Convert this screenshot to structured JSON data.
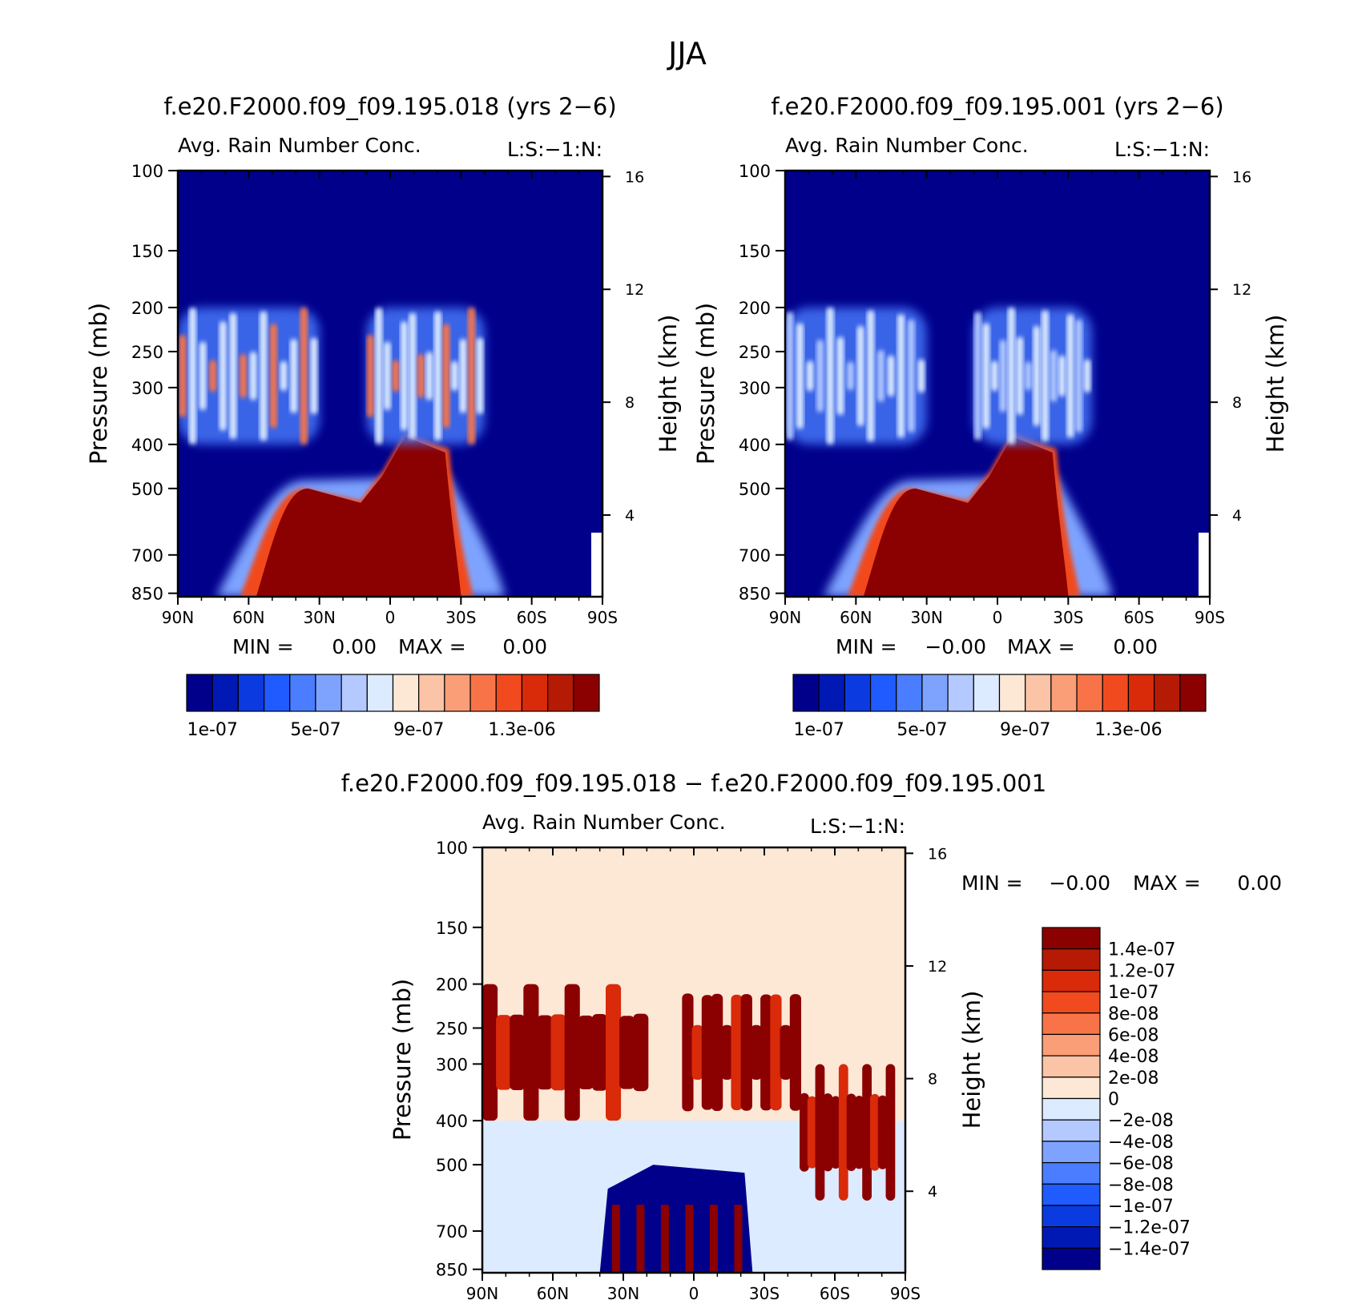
{
  "page": {
    "title": "JJA"
  },
  "panels": [
    {
      "title": "f.e20.F2000.f09_f09.195.018 (yrs 2-6)",
      "subtitle": "Avg. Rain Number Conc.",
      "right_note": "L:S:-1:N:",
      "stats": {
        "min_label": "MIN =",
        "min_value": "0.00",
        "max_label": "MAX =",
        "max_value": "0.00"
      }
    },
    {
      "title": "f.e20.F2000.f09_f09.195.001 (yrs 2-6)",
      "subtitle": "Avg. Rain Number Conc.",
      "right_note": "L:S:-1:N:",
      "stats": {
        "min_label": "MIN =",
        "min_value": "-0.00",
        "max_label": "MAX =",
        "max_value": "0.00"
      }
    },
    {
      "title": "f.e20.F2000.f09_f09.195.018 - f.e20.F2000.f09_f09.195.001",
      "subtitle": "Avg. Rain Number Conc.",
      "right_note": "L:S:-1:N:",
      "stats": {
        "min_label": "MIN =",
        "min_value": "-0.00",
        "max_label": "MAX =",
        "max_value": "0.00"
      }
    }
  ],
  "axes": {
    "ylabel": "Pressure (mb)",
    "ylabel_right": "Height (km)",
    "pressure_ticks": [
      100,
      150,
      200,
      250,
      300,
      400,
      500,
      700,
      850
    ],
    "pressure_tick_labels": [
      "100",
      "150",
      "200",
      "250",
      "300",
      "400",
      "500",
      "700",
      "850"
    ],
    "height_ticks": [
      16,
      12,
      8,
      4
    ],
    "height_tick_labels": [
      "16",
      "12",
      "8",
      "4"
    ],
    "lat_ticks": [
      90,
      60,
      30,
      0,
      -30,
      -60,
      -90
    ],
    "lat_tick_labels": [
      "90N",
      "60N",
      "30N",
      "0",
      "30S",
      "60S",
      "90S"
    ]
  },
  "colorbars": {
    "absolute": {
      "labels": [
        "1e-07",
        "5e-07",
        "9e-07",
        "1.3e-06"
      ],
      "colors": [
        "#00008b",
        "#0019b5",
        "#0a3ae0",
        "#1f5bff",
        "#4a7dff",
        "#7ea3ff",
        "#b3c9ff",
        "#dcebff",
        "#fde8d6",
        "#fcc4a6",
        "#fa9e77",
        "#f87448",
        "#f14a1e",
        "#d92a0a",
        "#b51a05",
        "#8b0000"
      ]
    },
    "difference": {
      "labels": [
        "1.4e-07",
        "1.2e-07",
        "1e-07",
        "8e-08",
        "6e-08",
        "4e-08",
        "2e-08",
        "0",
        "-2e-08",
        "-4e-08",
        "-6e-08",
        "-8e-08",
        "-1e-07",
        "-1.2e-07",
        "-1.4e-07"
      ],
      "colors": [
        "#8b0000",
        "#b51a05",
        "#d92a0a",
        "#f14a1e",
        "#f87448",
        "#fa9e77",
        "#fcc4a6",
        "#fde8d6",
        "#dcebff",
        "#b3c9ff",
        "#7ea3ff",
        "#4a7dff",
        "#1f5bff",
        "#0a3ae0",
        "#0019b5",
        "#00008b"
      ]
    }
  },
  "chart_data": [
    {
      "type": "heatmap",
      "title": "f.e20.F2000.f09_f09.195.018 (yrs 2-6)",
      "subtitle": "Avg. Rain Number Conc.",
      "xlabel": "",
      "ylabel": "Pressure (mb)",
      "ylabel_right": "Height (km)",
      "xlim": [
        90,
        -90
      ],
      "ylim": [
        850,
        100
      ],
      "y_scale": "log (pressure)",
      "background_value": "below 1e-07",
      "features": [
        {
          "kind": "lower-blob",
          "lat_from": 50,
          "lat_to": -25,
          "p_top": 500,
          "p_bottom": 850,
          "value": "above 1.3e-06"
        },
        {
          "kind": "upper-band",
          "lat_from": 90,
          "lat_to": 30,
          "p_top": 200,
          "p_bottom": 400,
          "value": "3e-07 to 1.3e-06"
        },
        {
          "kind": "upper-band",
          "lat_from": 10,
          "lat_to": -40,
          "p_top": 200,
          "p_bottom": 400,
          "value": "3e-07 to 1.3e-06"
        }
      ]
    },
    {
      "type": "heatmap",
      "title": "f.e20.F2000.f09_f09.195.001 (yrs 2-6)",
      "subtitle": "Avg. Rain Number Conc.",
      "xlabel": "",
      "ylabel": "Pressure (mb)",
      "ylabel_right": "Height (km)",
      "xlim": [
        90,
        -90
      ],
      "ylim": [
        850,
        100
      ],
      "y_scale": "log (pressure)",
      "background_value": "below 1e-07",
      "features": [
        {
          "kind": "lower-blob",
          "lat_from": 50,
          "lat_to": -25,
          "p_top": 500,
          "p_bottom": 850,
          "value": "above 1.3e-06"
        },
        {
          "kind": "upper-band",
          "lat_from": 90,
          "lat_to": 30,
          "p_top": 200,
          "p_bottom": 400,
          "value": "1e-07 to 9e-07"
        },
        {
          "kind": "upper-band",
          "lat_from": 10,
          "lat_to": -40,
          "p_top": 200,
          "p_bottom": 400,
          "value": "1e-07 to 9e-07"
        }
      ]
    },
    {
      "type": "heatmap",
      "title": "f.e20.F2000.f09_f09.195.018 - f.e20.F2000.f09_f09.195.001",
      "subtitle": "Avg. Rain Number Conc.",
      "xlabel": "",
      "ylabel": "Pressure (mb)",
      "ylabel_right": "Height (km)",
      "xlim": [
        90,
        -90
      ],
      "ylim": [
        850,
        100
      ],
      "y_scale": "log (pressure)",
      "background_value": "0 to 2e-08",
      "features": [
        {
          "kind": "positive-band",
          "lat_from": 90,
          "lat_to": 20,
          "p_top": 200,
          "p_bottom": 400,
          "value": "above 1.4e-07"
        },
        {
          "kind": "positive-band",
          "lat_from": 5,
          "lat_to": -45,
          "p_top": 200,
          "p_bottom": 400,
          "value": "above 1.4e-07"
        },
        {
          "kind": "positive-band",
          "lat_from": -45,
          "lat_to": -85,
          "p_top": 300,
          "p_bottom": 600,
          "value": "above 1.4e-07"
        },
        {
          "kind": "negative-blob",
          "lat_from": 40,
          "lat_to": -25,
          "p_top": 500,
          "p_bottom": 850,
          "value": "below -1.4e-07"
        },
        {
          "kind": "weak-negative",
          "lat_from": 90,
          "lat_to": -90,
          "p_top": 400,
          "p_bottom": 850,
          "value": "-2e-08 to 0"
        }
      ]
    }
  ]
}
